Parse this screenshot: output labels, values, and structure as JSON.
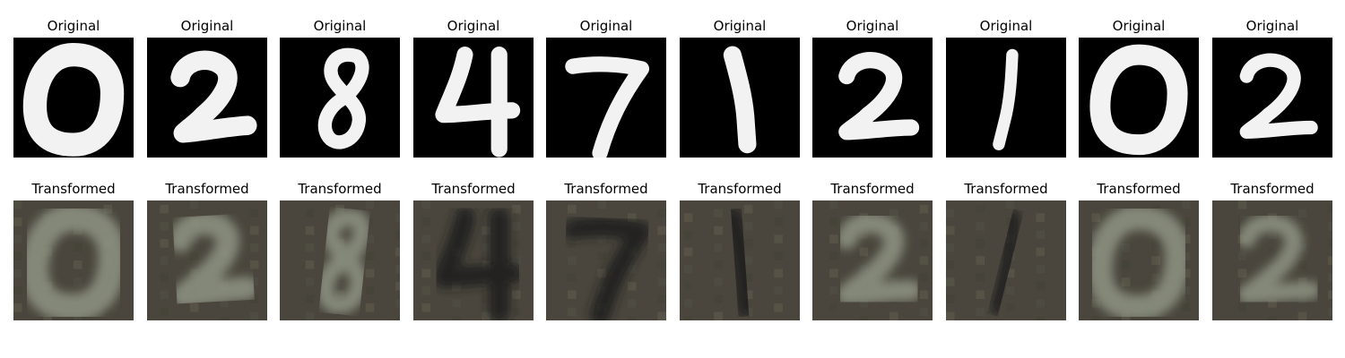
{
  "rows": [
    {
      "key": "original",
      "labels": [
        "Original",
        "Original",
        "Original",
        "Original",
        "Original",
        "Original",
        "Original",
        "Original",
        "Original",
        "Original"
      ]
    },
    {
      "key": "transformed",
      "labels": [
        "Transformed",
        "Transformed",
        "Transformed",
        "Transformed",
        "Transformed",
        "Transformed",
        "Transformed",
        "Transformed",
        "Transformed",
        "Transformed"
      ]
    }
  ],
  "digits": [
    0,
    2,
    8,
    4,
    7,
    1,
    2,
    1,
    0,
    2
  ],
  "colors": {
    "original_bg": "#000000",
    "original_stroke": "#f2f2f2",
    "transformed_bg": "#4a463d",
    "transformed_stroke_light": "#8f9484",
    "transformed_stroke_dark": "#1c1d1e"
  }
}
